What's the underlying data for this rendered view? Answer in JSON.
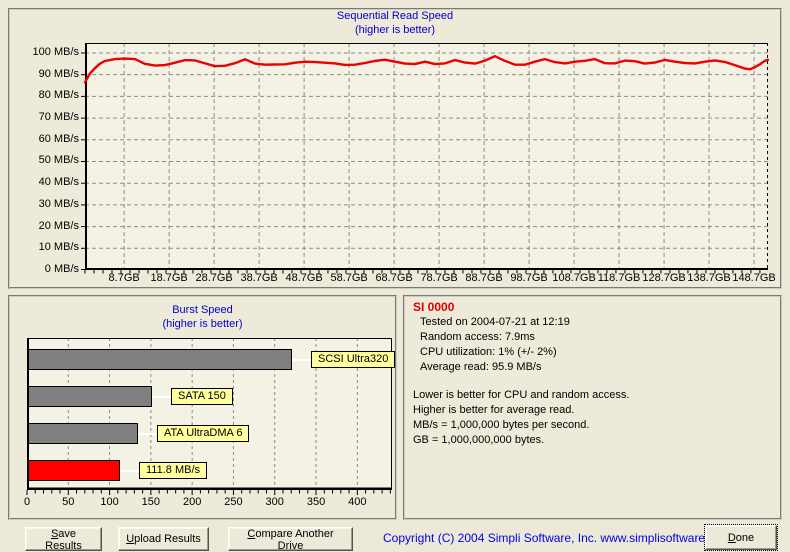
{
  "info": {
    "drive": "SI 0000",
    "tested": "Tested on 2004-07-21 at 12:19",
    "random_access": "Random access: 7.9ms",
    "cpu_utilization": "CPU utilization: 1% (+/- 2%)",
    "average_read": "Average read: 95.9 MB/s",
    "note1": "Lower is better for CPU and random access.",
    "note2": "Higher is better for average read.",
    "note3": "MB/s = 1,000,000 bytes per second.",
    "note4": "GB = 1,000,000,000 bytes."
  },
  "buttons": {
    "save": {
      "key": "S",
      "rest": "ave Results"
    },
    "upload": {
      "key": "U",
      "rest": "pload Results"
    },
    "compare": {
      "key": "C",
      "rest": "ompare Another Drive"
    },
    "done": {
      "key": "D",
      "rest": "one"
    }
  },
  "footer": {
    "copyright": "Copyright (C) 2004 Simpli Software, Inc. www.simplisoftware.com"
  },
  "colors": {
    "title_blue": "#0000cc",
    "line_red": "#ee0000",
    "bar_gray": "#808080",
    "bar_red": "#ff0000",
    "label_yellow": "#ffff9e",
    "copyright_blue": "#0000e6",
    "drive_name_red": "#e00000",
    "background": "#ece9d8"
  },
  "chart_data": [
    {
      "type": "line",
      "title": "Sequential Read Speed",
      "subtitle": "(higher is better)",
      "xlabel": "GB",
      "ylabel": "MB/s",
      "xlim": [
        0,
        151.8
      ],
      "ylim": [
        0,
        104.6
      ],
      "grid": "dashed",
      "y_tick_labels": [
        "0 MB/s",
        "10 MB/s",
        "20 MB/s",
        "30 MB/s",
        "40 MB/s",
        "50 MB/s",
        "60 MB/s",
        "70 MB/s",
        "80 MB/s",
        "90 MB/s",
        "100 MB/s"
      ],
      "x_ticks_gb": [
        8.7,
        18.7,
        28.7,
        38.7,
        48.7,
        58.7,
        68.7,
        78.7,
        88.7,
        98.7,
        108.7,
        118.7,
        128.7,
        138.7,
        148.7
      ],
      "series": [
        {
          "name": "sequential-read-speed",
          "color": "#ee0000",
          "points": [
            [
              0,
              86.5
            ],
            [
              1.1,
              90.5
            ],
            [
              2.2,
              93
            ],
            [
              3.3,
              95
            ],
            [
              4.4,
              96.3
            ],
            [
              6.7,
              97.2
            ],
            [
              8.9,
              97.4
            ],
            [
              11.1,
              97.2
            ],
            [
              13.3,
              95
            ],
            [
              15.6,
              94.2
            ],
            [
              17.8,
              94.4
            ],
            [
              20,
              95.5
            ],
            [
              22.2,
              96.7
            ],
            [
              24.4,
              96.6
            ],
            [
              26.7,
              95.2
            ],
            [
              28.9,
              93.9
            ],
            [
              31.1,
              94.1
            ],
            [
              33.3,
              95.3
            ],
            [
              35.6,
              97.1
            ],
            [
              37.8,
              95.1
            ],
            [
              40,
              94.6
            ],
            [
              42.2,
              94.7
            ],
            [
              44.4,
              94.8
            ],
            [
              46.7,
              95.5
            ],
            [
              48.9,
              96
            ],
            [
              51.1,
              95.8
            ],
            [
              53.3,
              95.5
            ],
            [
              55.6,
              95.2
            ],
            [
              57.8,
              94.5
            ],
            [
              60,
              94.6
            ],
            [
              62.2,
              95.4
            ],
            [
              64.4,
              96.3
            ],
            [
              66.7,
              96.9
            ],
            [
              68.9,
              96
            ],
            [
              71.1,
              95.1
            ],
            [
              73.3,
              94.9
            ],
            [
              75.6,
              96
            ],
            [
              77.8,
              94.9
            ],
            [
              80,
              95.2
            ],
            [
              82.2,
              96.7
            ],
            [
              84.4,
              95.6
            ],
            [
              86.7,
              95.1
            ],
            [
              88.9,
              96.5
            ],
            [
              91.1,
              98.5
            ],
            [
              93.3,
              96.4
            ],
            [
              95.6,
              94.6
            ],
            [
              97.8,
              94.6
            ],
            [
              100,
              96
            ],
            [
              102.2,
              97.2
            ],
            [
              104.4,
              95.8
            ],
            [
              106.7,
              95.2
            ],
            [
              108.9,
              96
            ],
            [
              111.1,
              96.4
            ],
            [
              113.3,
              97.2
            ],
            [
              115.6,
              95.3
            ],
            [
              117.8,
              95.2
            ],
            [
              120,
              96.5
            ],
            [
              122.2,
              96.2
            ],
            [
              124.4,
              95.1
            ],
            [
              126.7,
              95.6
            ],
            [
              128.9,
              96.8
            ],
            [
              131.1,
              96
            ],
            [
              133.3,
              95.4
            ],
            [
              135.6,
              95.2
            ],
            [
              137.8,
              96
            ],
            [
              140,
              96.6
            ],
            [
              142.2,
              95.9
            ],
            [
              144.4,
              94.4
            ],
            [
              146.7,
              92.8
            ],
            [
              147.8,
              92.5
            ],
            [
              148.9,
              93.5
            ],
            [
              150,
              94.8
            ],
            [
              151.1,
              96.4
            ],
            [
              151.8,
              96.8
            ]
          ]
        }
      ]
    },
    {
      "type": "bar",
      "title": "Burst Speed",
      "subtitle": "(higher is better)",
      "orientation": "horizontal",
      "xlim": [
        0,
        442
      ],
      "x_ticks": [
        0,
        50,
        100,
        150,
        200,
        250,
        300,
        350,
        400
      ],
      "minor_tick_step": 10,
      "bars": [
        {
          "label": "SCSI Ultra320",
          "value": 320,
          "color": "#808080"
        },
        {
          "label": "SATA 150",
          "value": 150,
          "color": "#808080"
        },
        {
          "label": "ATA UltraDMA 6",
          "value": 133,
          "color": "#808080"
        },
        {
          "label": "111.8 MB/s",
          "value": 111.8,
          "color": "#ff0000"
        }
      ]
    }
  ]
}
